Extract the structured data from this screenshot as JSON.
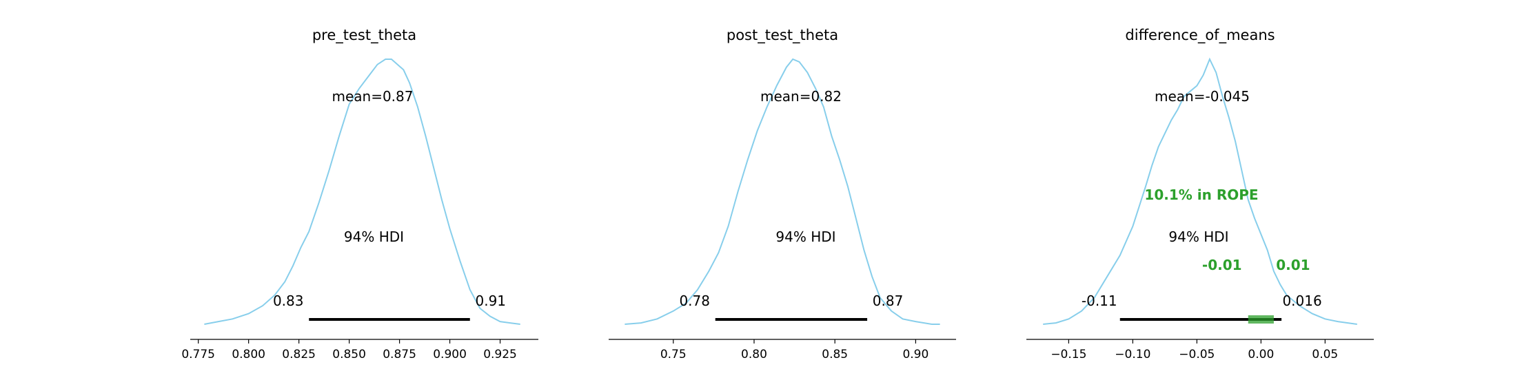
{
  "chart_data": [
    {
      "type": "area",
      "title": "pre_test_theta",
      "mean_label": "mean=0.87",
      "hdi_label": "94% HDI",
      "hdi": [
        0.83,
        0.91
      ],
      "hdi_lower_label": "0.83",
      "hdi_upper_label": "0.91",
      "xlim": [
        0.771,
        0.944
      ],
      "xticks": [
        0.775,
        0.8,
        0.825,
        0.85,
        0.875,
        0.9,
        0.925
      ],
      "xtick_labels": [
        "0.775",
        "0.800",
        "0.825",
        "0.850",
        "0.875",
        "0.900",
        "0.925"
      ],
      "density": {
        "x": [
          0.778,
          0.785,
          0.792,
          0.8,
          0.807,
          0.813,
          0.818,
          0.822,
          0.826,
          0.83,
          0.835,
          0.84,
          0.845,
          0.85,
          0.855,
          0.86,
          0.864,
          0.868,
          0.871,
          0.874,
          0.877,
          0.88,
          0.884,
          0.888,
          0.892,
          0.896,
          0.9,
          0.905,
          0.91,
          0.915,
          0.92,
          0.925,
          0.93,
          0.935
        ],
        "y": [
          0.0,
          0.01,
          0.02,
          0.04,
          0.07,
          0.11,
          0.16,
          0.22,
          0.29,
          0.35,
          0.46,
          0.58,
          0.71,
          0.83,
          0.89,
          0.94,
          0.98,
          1.0,
          1.0,
          0.98,
          0.96,
          0.91,
          0.82,
          0.71,
          0.59,
          0.47,
          0.36,
          0.24,
          0.13,
          0.06,
          0.03,
          0.01,
          0.005,
          0.0
        ]
      }
    },
    {
      "type": "area",
      "title": "post_test_theta",
      "mean_label": "mean=0.82",
      "hdi_label": "94% HDI",
      "hdi": [
        0.776,
        0.87
      ],
      "hdi_lower_label": "0.78",
      "hdi_upper_label": "0.87",
      "xlim": [
        0.71,
        0.925
      ],
      "xticks": [
        0.75,
        0.8,
        0.85,
        0.9
      ],
      "xtick_labels": [
        "0.75",
        "0.80",
        "0.85",
        "0.90"
      ],
      "density": {
        "x": [
          0.72,
          0.73,
          0.74,
          0.75,
          0.758,
          0.765,
          0.772,
          0.778,
          0.784,
          0.79,
          0.796,
          0.802,
          0.808,
          0.814,
          0.82,
          0.824,
          0.828,
          0.833,
          0.838,
          0.843,
          0.848,
          0.853,
          0.858,
          0.863,
          0.868,
          0.873,
          0.878,
          0.885,
          0.892,
          0.9,
          0.91,
          0.915
        ],
        "y": [
          0.0,
          0.005,
          0.02,
          0.05,
          0.08,
          0.13,
          0.2,
          0.27,
          0.37,
          0.5,
          0.62,
          0.73,
          0.82,
          0.9,
          0.97,
          1.0,
          0.99,
          0.95,
          0.89,
          0.82,
          0.71,
          0.62,
          0.52,
          0.4,
          0.28,
          0.18,
          0.1,
          0.05,
          0.02,
          0.01,
          0.0,
          0.0
        ]
      }
    },
    {
      "type": "area",
      "title": "difference_of_means",
      "mean_label": "mean=-0.045",
      "hdi_label": "94% HDI",
      "hdi": [
        -0.11,
        0.016
      ],
      "hdi_lower_label": "-0.11",
      "hdi_upper_label": "0.016",
      "rope": [
        -0.01,
        0.01
      ],
      "rope_label": "10.1% in ROPE",
      "rope_lower_label": "-0.01",
      "rope_upper_label": "0.01",
      "xlim": [
        -0.183,
        0.088
      ],
      "xticks": [
        -0.15,
        -0.1,
        -0.05,
        0.0,
        0.05
      ],
      "xtick_labels": [
        "−0.15",
        "−0.10",
        "−0.05",
        "0.00",
        "0.05"
      ],
      "density": {
        "x": [
          -0.17,
          -0.16,
          -0.15,
          -0.14,
          -0.13,
          -0.12,
          -0.11,
          -0.1,
          -0.09,
          -0.085,
          -0.08,
          -0.075,
          -0.07,
          -0.065,
          -0.06,
          -0.055,
          -0.05,
          -0.045,
          -0.04,
          -0.035,
          -0.03,
          -0.025,
          -0.02,
          -0.015,
          -0.01,
          -0.005,
          0.0,
          0.005,
          0.01,
          0.015,
          0.02,
          0.03,
          0.04,
          0.05,
          0.06,
          0.075
        ],
        "y": [
          0.0,
          0.005,
          0.02,
          0.05,
          0.1,
          0.18,
          0.26,
          0.37,
          0.52,
          0.6,
          0.67,
          0.72,
          0.77,
          0.81,
          0.86,
          0.88,
          0.9,
          0.94,
          1.0,
          0.95,
          0.86,
          0.78,
          0.69,
          0.58,
          0.47,
          0.4,
          0.34,
          0.28,
          0.2,
          0.15,
          0.11,
          0.07,
          0.04,
          0.02,
          0.01,
          0.0
        ]
      }
    }
  ]
}
